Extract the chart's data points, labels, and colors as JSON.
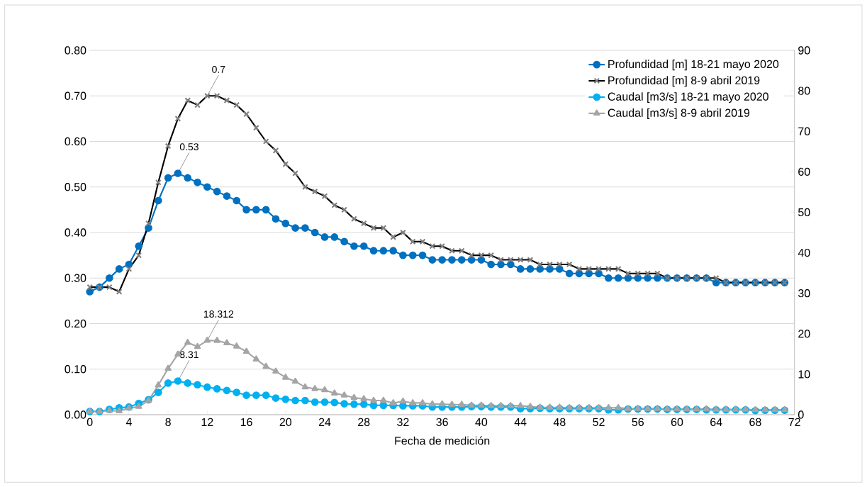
{
  "chart_data": {
    "type": "line",
    "xlabel": "Fecha de medición",
    "x": [
      0,
      1,
      2,
      3,
      4,
      5,
      6,
      7,
      8,
      9,
      10,
      11,
      12,
      13,
      14,
      15,
      16,
      17,
      18,
      19,
      20,
      21,
      22,
      23,
      24,
      25,
      26,
      27,
      28,
      29,
      30,
      31,
      32,
      33,
      34,
      35,
      36,
      37,
      38,
      39,
      40,
      41,
      42,
      43,
      44,
      45,
      46,
      47,
      48,
      49,
      50,
      51,
      52,
      53,
      54,
      55,
      56,
      57,
      58,
      59,
      60,
      61,
      62,
      63,
      64,
      65,
      66,
      67,
      68,
      69,
      70,
      71
    ],
    "xlim": [
      0,
      72
    ],
    "xticks": [
      0,
      4,
      8,
      12,
      16,
      20,
      24,
      28,
      32,
      36,
      40,
      44,
      48,
      52,
      56,
      60,
      64,
      68,
      72
    ],
    "ylim": [
      0,
      0.8
    ],
    "yticks": [
      {
        "value": 0,
        "label": "0.00"
      },
      {
        "value": 0.1,
        "label": "0.10"
      },
      {
        "value": 0.2,
        "label": "0.20"
      },
      {
        "value": 0.3,
        "label": "0.30"
      },
      {
        "value": 0.4,
        "label": "0.40"
      },
      {
        "value": 0.5,
        "label": "0.50"
      },
      {
        "value": 0.6,
        "label": "0.60"
      },
      {
        "value": 0.7,
        "label": "0.70"
      },
      {
        "value": 0.8,
        "label": "0.80"
      }
    ],
    "y2lim": [
      0,
      90
    ],
    "y2ticks": [
      0,
      10,
      20,
      30,
      40,
      50,
      60,
      70,
      80,
      90
    ],
    "grid": "y",
    "legend": "top right",
    "series": [
      {
        "name": "Profundidad [m] 18-21 mayo 2020",
        "color": "#0070c0",
        "marker": "circle",
        "values": [
          0.27,
          0.28,
          0.3,
          0.32,
          0.33,
          0.37,
          0.41,
          0.47,
          0.52,
          0.53,
          0.52,
          0.51,
          0.5,
          0.49,
          0.48,
          0.47,
          0.45,
          0.45,
          0.45,
          0.43,
          0.42,
          0.41,
          0.41,
          0.4,
          0.39,
          0.39,
          0.38,
          0.37,
          0.37,
          0.36,
          0.36,
          0.36,
          0.35,
          0.35,
          0.35,
          0.34,
          0.34,
          0.34,
          0.34,
          0.34,
          0.34,
          0.33,
          0.33,
          0.33,
          0.32,
          0.32,
          0.32,
          0.32,
          0.32,
          0.31,
          0.31,
          0.31,
          0.31,
          0.3,
          0.3,
          0.3,
          0.3,
          0.3,
          0.3,
          0.3,
          0.3,
          0.3,
          0.3,
          0.3,
          0.29,
          0.29,
          0.29,
          0.29,
          0.29,
          0.29,
          0.29,
          0.29
        ],
        "value_labels": [
          null,
          null,
          null,
          null,
          null,
          null,
          null,
          null,
          null,
          "0.53",
          null,
          null,
          null,
          null,
          null,
          null,
          null,
          null,
          null,
          null,
          null,
          null,
          null,
          null,
          null,
          null,
          null,
          null,
          null,
          null,
          null,
          null,
          null,
          null,
          null,
          null,
          null,
          null,
          null,
          null,
          null,
          null,
          null,
          null,
          null,
          null,
          null,
          null,
          null,
          null,
          null,
          null,
          null,
          null,
          null,
          null,
          null,
          null,
          null,
          null,
          null,
          null,
          null,
          null,
          null,
          null,
          null,
          null,
          null,
          null,
          null,
          null
        ]
      },
      {
        "name": "Profundidad [m] 8-9 abril 2019",
        "color": "#000000",
        "marker": "cross",
        "values": [
          0.28,
          0.28,
          0.28,
          0.27,
          0.32,
          0.35,
          0.42,
          0.51,
          0.59,
          0.65,
          0.69,
          0.68,
          0.7,
          0.7,
          0.69,
          0.68,
          0.66,
          0.63,
          0.6,
          0.58,
          0.55,
          0.53,
          0.5,
          0.49,
          0.48,
          0.46,
          0.45,
          0.43,
          0.42,
          0.41,
          0.41,
          0.39,
          0.4,
          0.38,
          0.38,
          0.37,
          0.37,
          0.36,
          0.36,
          0.35,
          0.35,
          0.35,
          0.34,
          0.34,
          0.34,
          0.34,
          0.33,
          0.33,
          0.33,
          0.33,
          0.32,
          0.32,
          0.32,
          0.32,
          0.32,
          0.31,
          0.31,
          0.31,
          0.31,
          0.3,
          0.3,
          0.3,
          0.3,
          0.3,
          0.3,
          0.29,
          0.29,
          0.29,
          0.29,
          0.29,
          0.29,
          0.29
        ],
        "value_labels": [
          null,
          null,
          null,
          null,
          null,
          null,
          null,
          null,
          null,
          null,
          null,
          null,
          "0.7",
          null,
          null,
          null,
          null,
          null,
          null,
          null,
          null,
          null,
          null,
          null,
          null,
          null,
          null,
          null,
          null,
          null,
          null,
          null,
          null,
          null,
          null,
          null,
          null,
          null,
          null,
          null,
          null,
          null,
          null,
          null,
          null,
          null,
          null,
          null,
          null,
          null,
          null,
          null,
          null,
          null,
          null,
          null,
          null,
          null,
          null,
          null,
          null,
          null,
          null,
          null,
          null,
          null,
          null,
          null,
          null,
          null,
          null,
          null
        ]
      },
      {
        "name": "Caudal [m3/s] 18-21 mayo 2020",
        "color": "#00b0f0",
        "marker": "circle",
        "axis": "y2",
        "values": [
          0.8,
          0.8,
          1.3,
          1.7,
          1.9,
          2.8,
          3.7,
          5.5,
          7.8,
          8.31,
          7.8,
          7.4,
          6.8,
          6.4,
          6.0,
          5.5,
          4.8,
          4.8,
          4.8,
          4.1,
          3.8,
          3.5,
          3.5,
          3.1,
          3.1,
          3.0,
          2.7,
          2.6,
          2.6,
          2.3,
          2.3,
          2.3,
          2.2,
          2.2,
          2.2,
          1.9,
          1.9,
          1.9,
          1.9,
          2.0,
          2.0,
          1.9,
          1.9,
          1.9,
          1.5,
          1.5,
          1.6,
          1.5,
          1.5,
          1.5,
          1.5,
          1.5,
          1.5,
          1.2,
          1.2,
          1.4,
          1.4,
          1.4,
          1.4,
          1.3,
          1.3,
          1.3,
          1.3,
          1.2,
          1.2,
          1.2,
          1.2,
          1.2,
          1.0,
          1.1,
          1.1,
          1.1
        ],
        "value_labels": [
          null,
          null,
          null,
          null,
          null,
          null,
          null,
          null,
          null,
          "8.31",
          null,
          null,
          null,
          null,
          null,
          null,
          null,
          null,
          null,
          null,
          null,
          null,
          null,
          null,
          null,
          null,
          null,
          null,
          null,
          null,
          null,
          null,
          null,
          null,
          null,
          null,
          null,
          null,
          null,
          null,
          null,
          null,
          null,
          null,
          null,
          null,
          null,
          null,
          null,
          null,
          null,
          null,
          null,
          null,
          null,
          null,
          null,
          null,
          null,
          null,
          null,
          null,
          null,
          null,
          null,
          null,
          null,
          null,
          null,
          null,
          null,
          null
        ]
      },
      {
        "name": "Caudal [m3/s] 8-9 abril 2019",
        "color": "#a5a5a5",
        "marker": "triangle",
        "axis": "y2",
        "values": [
          0.8,
          0.8,
          1.0,
          0.9,
          1.6,
          2.0,
          3.5,
          7.3,
          11.4,
          14.9,
          17.8,
          16.8,
          18.312,
          18.3,
          17.7,
          16.9,
          15.6,
          13.7,
          11.9,
          10.7,
          9.2,
          8.2,
          6.8,
          6.4,
          6.1,
          5.3,
          4.8,
          4.2,
          3.9,
          3.5,
          3.5,
          2.9,
          3.3,
          2.9,
          2.9,
          2.6,
          2.6,
          2.5,
          2.5,
          2.3,
          2.3,
          2.2,
          2.2,
          2.2,
          2.2,
          2.0,
          1.8,
          1.8,
          1.8,
          1.7,
          1.7,
          1.7,
          1.7,
          1.7,
          1.7,
          1.5,
          1.5,
          1.5,
          1.5,
          1.4,
          1.4,
          1.4,
          1.4,
          1.4,
          1.3,
          1.3,
          1.3,
          1.3,
          1.2,
          1.2,
          1.2,
          1.2
        ],
        "value_labels": [
          null,
          null,
          null,
          null,
          null,
          null,
          null,
          null,
          null,
          null,
          null,
          null,
          "18.312",
          null,
          null,
          null,
          null,
          null,
          null,
          null,
          null,
          null,
          null,
          null,
          null,
          null,
          null,
          null,
          null,
          null,
          null,
          null,
          null,
          null,
          null,
          null,
          null,
          null,
          null,
          null,
          null,
          null,
          null,
          null,
          null,
          null,
          null,
          null,
          null,
          null,
          null,
          null,
          null,
          null,
          null,
          null,
          null,
          null,
          null,
          null,
          null,
          null,
          null,
          null,
          null,
          null,
          null,
          null,
          null,
          null,
          null,
          null
        ]
      }
    ]
  }
}
